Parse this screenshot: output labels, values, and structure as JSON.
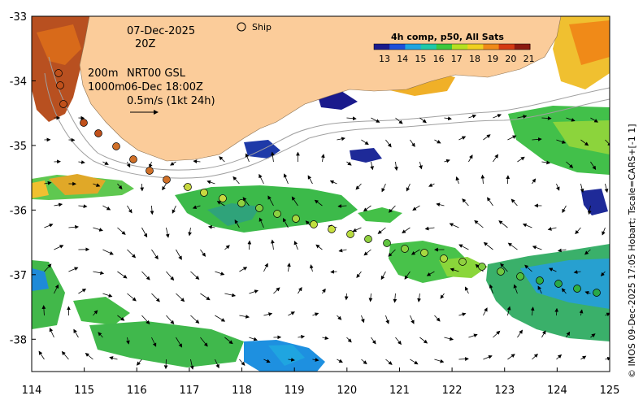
{
  "figure": {
    "date": "07-Dec-2025",
    "hour": "20Z",
    "ship_label": "Ship",
    "depth_label_1": "200m",
    "depth_label_2": "1000m",
    "nrt_label": "NRT00 GSL",
    "nrt_time": "06-Dec 18:00Z",
    "vector_scale": "0.5m/s (1kt 24h)",
    "credit": "© IMOS 09-Dec-2025 17:05 Hobart; Tscale=CARS+[-1 1]"
  },
  "colorbar": {
    "title": "4h comp, p50, All Sats",
    "ticks": [
      "13",
      "14",
      "15",
      "16",
      "17",
      "18",
      "19",
      "20",
      "21"
    ],
    "colors": [
      "#1a1a8c",
      "#1e4fd8",
      "#1fa5e0",
      "#1fc9a8",
      "#3cc83c",
      "#b6e020",
      "#f0d020",
      "#f08a18",
      "#d43a12",
      "#8c1a10"
    ]
  },
  "axes": {
    "lon_ticks": [
      "114",
      "115",
      "116",
      "117",
      "118",
      "119",
      "120",
      "121",
      "122",
      "123",
      "124",
      "125"
    ],
    "lat_ticks": [
      "-33",
      "-34",
      "-35",
      "-36",
      "-37",
      "-38"
    ],
    "lon_range": [
      114,
      125
    ],
    "lat_range": [
      -38.5,
      -33
    ]
  },
  "colors": {
    "land": "#fbcc9a",
    "ocean": "#ffffff"
  }
}
